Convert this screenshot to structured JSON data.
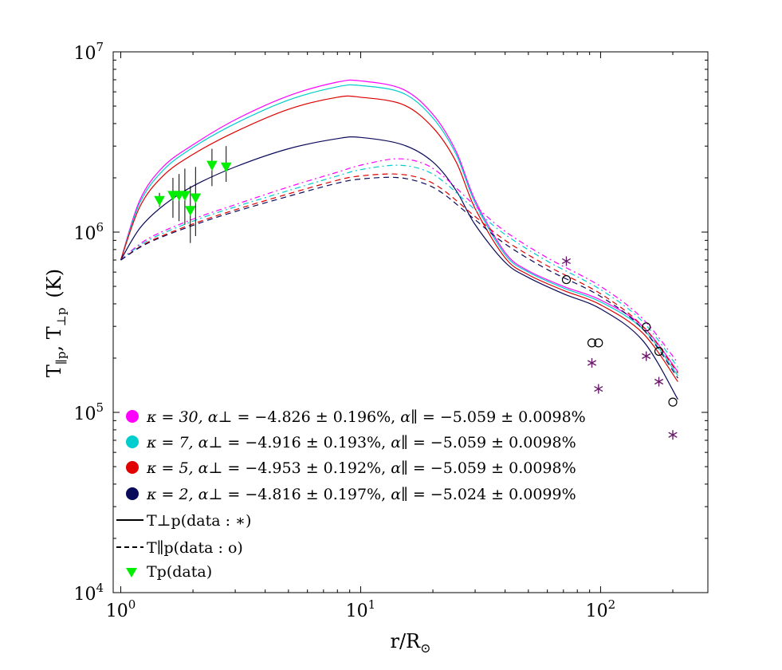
{
  "chart_data": {
    "type": "line",
    "x_scale": "log",
    "y_scale": "log",
    "xlabel": "r/R⊙",
    "ylabel": "T∥p, T⊥p  (K)",
    "xlim": [
      0.93,
      280
    ],
    "ylim": [
      10000,
      10000000
    ],
    "x_ticks": [
      {
        "value": 1,
        "base": "10",
        "exp": "0"
      },
      {
        "value": 10,
        "base": "10",
        "exp": "1"
      },
      {
        "value": 100,
        "base": "10",
        "exp": "2"
      }
    ],
    "y_ticks": [
      {
        "value": 10000,
        "base": "10",
        "exp": "4"
      },
      {
        "value": 100000,
        "base": "10",
        "exp": "5"
      },
      {
        "value": 1000000,
        "base": "10",
        "exp": "6"
      },
      {
        "value": 10000000,
        "base": "10",
        "exp": "7"
      }
    ],
    "series": [
      {
        "name": "kappa30-perp",
        "kappa": 30,
        "color": "#ff00ff",
        "style": "solid",
        "component": "perp",
        "x": [
          1,
          1.2,
          1.5,
          2,
          3,
          5,
          8,
          10,
          15,
          20,
          25,
          30,
          40,
          50,
          70,
          100,
          150,
          210
        ],
        "y": [
          700000,
          1500000,
          2300000,
          3050000,
          4200000,
          5700000,
          6800000,
          6900000,
          6200000,
          4500000,
          2800000,
          1500000,
          770000,
          610000,
          500000,
          420000,
          300000,
          168000
        ]
      },
      {
        "name": "kappa7-perp",
        "kappa": 7,
        "color": "#00cdcd",
        "style": "solid",
        "component": "perp",
        "x": [
          1,
          1.2,
          1.5,
          2,
          3,
          5,
          8,
          10,
          15,
          20,
          25,
          30,
          40,
          50,
          70,
          100,
          150,
          210
        ],
        "y": [
          700000,
          1450000,
          2200000,
          2950000,
          4000000,
          5400000,
          6400000,
          6500000,
          5900000,
          4300000,
          2700000,
          1450000,
          750000,
          600000,
          490000,
          410000,
          290000,
          160000
        ]
      },
      {
        "name": "kappa5-perp",
        "kappa": 5,
        "color": "#e00000",
        "style": "solid",
        "component": "perp",
        "x": [
          1,
          1.2,
          1.5,
          2,
          3,
          5,
          8,
          10,
          15,
          20,
          25,
          30,
          40,
          50,
          70,
          100,
          150,
          210
        ],
        "y": [
          700000,
          1380000,
          2050000,
          2700000,
          3600000,
          4800000,
          5600000,
          5600000,
          5100000,
          3800000,
          2450000,
          1350000,
          720000,
          580000,
          475000,
          395000,
          275000,
          148000
        ]
      },
      {
        "name": "kappa2-perp",
        "kappa": 2,
        "color": "#0a0a5a",
        "style": "solid",
        "component": "perp",
        "x": [
          1,
          1.2,
          1.5,
          2,
          3,
          5,
          8,
          10,
          15,
          20,
          25,
          30,
          40,
          50,
          70,
          100,
          150,
          210
        ],
        "y": [
          700000,
          1050000,
          1400000,
          1800000,
          2300000,
          2900000,
          3300000,
          3350000,
          3050000,
          2450000,
          1700000,
          1100000,
          680000,
          560000,
          455000,
          375000,
          250000,
          118000
        ]
      },
      {
        "name": "kappa30-par",
        "kappa": 30,
        "color": "#ff00ff",
        "style": "dashdot",
        "component": "par",
        "x": [
          1,
          1.3,
          2,
          3,
          5,
          8,
          10,
          14,
          18,
          22,
          30,
          40,
          60,
          100,
          150,
          210
        ],
        "y": [
          700000,
          920000,
          1180000,
          1420000,
          1780000,
          2150000,
          2350000,
          2550000,
          2420000,
          2050000,
          1400000,
          1010000,
          720000,
          500000,
          330000,
          188000
        ]
      },
      {
        "name": "kappa7-par",
        "kappa": 7,
        "color": "#00cdcd",
        "style": "dashdot",
        "component": "par",
        "x": [
          1,
          1.3,
          2,
          3,
          5,
          8,
          10,
          14,
          18,
          22,
          30,
          40,
          60,
          100,
          150,
          210
        ],
        "y": [
          700000,
          900000,
          1150000,
          1380000,
          1700000,
          2050000,
          2220000,
          2350000,
          2230000,
          1920000,
          1330000,
          970000,
          690000,
          480000,
          318000,
          178000
        ]
      },
      {
        "name": "kappa5-par",
        "kappa": 5,
        "color": "#e00000",
        "style": "dashed",
        "component": "par",
        "x": [
          1,
          1.3,
          2,
          3,
          5,
          8,
          10,
          14,
          18,
          22,
          30,
          40,
          60,
          100,
          150,
          210
        ],
        "y": [
          700000,
          880000,
          1110000,
          1330000,
          1630000,
          1940000,
          2050000,
          2100000,
          1980000,
          1720000,
          1220000,
          900000,
          650000,
          455000,
          300000,
          165000
        ]
      },
      {
        "name": "kappa2-par",
        "kappa": 2,
        "color": "#0a0a5a",
        "style": "dashed",
        "component": "par",
        "x": [
          1,
          1.3,
          2,
          3,
          5,
          8,
          10,
          14,
          18,
          22,
          30,
          40,
          60,
          100,
          150,
          210
        ],
        "y": [
          700000,
          870000,
          1090000,
          1300000,
          1580000,
          1870000,
          1970000,
          2010000,
          1880000,
          1640000,
          1170000,
          860000,
          620000,
          440000,
          290000,
          155000
        ]
      }
    ],
    "data_points": {
      "tp_triangles": [
        {
          "x": 1.45,
          "y": 1500000,
          "ylo": 1380000,
          "yhi": 1650000
        },
        {
          "x": 1.65,
          "y": 1600000,
          "ylo": 1200000,
          "yhi": 2000000
        },
        {
          "x": 1.75,
          "y": 1600000,
          "ylo": 1150000,
          "yhi": 2100000
        },
        {
          "x": 1.85,
          "y": 1600000,
          "ylo": 1100000,
          "yhi": 2250000
        },
        {
          "x": 1.95,
          "y": 1320000,
          "ylo": 870000,
          "yhi": 1800000
        },
        {
          "x": 2.05,
          "y": 1550000,
          "ylo": 950000,
          "yhi": 2300000
        },
        {
          "x": 2.4,
          "y": 2350000,
          "ylo": 1800000,
          "yhi": 2900000
        },
        {
          "x": 2.75,
          "y": 2300000,
          "ylo": 1900000,
          "yhi": 3000000
        }
      ],
      "perp_stars": [
        {
          "x": 72,
          "y": 690000
        },
        {
          "x": 92,
          "y": 188000
        },
        {
          "x": 98,
          "y": 135000
        },
        {
          "x": 155,
          "y": 205000
        },
        {
          "x": 175,
          "y": 148000
        },
        {
          "x": 200,
          "y": 75000
        }
      ],
      "par_circles": [
        {
          "x": 72,
          "y": 545000
        },
        {
          "x": 92,
          "y": 243000
        },
        {
          "x": 98,
          "y": 243000
        },
        {
          "x": 155,
          "y": 298000
        },
        {
          "x": 175,
          "y": 218000
        },
        {
          "x": 200,
          "y": 114000
        }
      ]
    },
    "legend": {
      "position": "lower-left",
      "kappa_entries": [
        {
          "kappa": "30",
          "alpha_perp": "−4.826 ± 0.196%",
          "alpha_par": "−5.059 ± 0.0098%",
          "color": "#ff00ff"
        },
        {
          "kappa": "7",
          "alpha_perp": "−4.916 ± 0.193%",
          "alpha_par": "−5.059 ± 0.0098%",
          "color": "#00cdcd"
        },
        {
          "kappa": "5",
          "alpha_perp": "−4.953 ± 0.192%",
          "alpha_par": "−5.059 ± 0.0098%",
          "color": "#e00000"
        },
        {
          "kappa": "2",
          "alpha_perp": "−4.816 ± 0.197%",
          "alpha_par": "−5.024 ± 0.0099%",
          "color": "#0a0a5a"
        }
      ],
      "kappa_symbol": "κ = ",
      "alpha_perp_symbol": "α⊥ = ",
      "alpha_par_symbol": "α∥ = ",
      "perp_line_label": "T⊥p(data : ∗)",
      "par_line_label": "T∥p(data : o)",
      "tp_label": "Tp(data)"
    },
    "colors": {
      "tp_marker": "#00ee00",
      "stars": "#6a1a6a",
      "circles": "#000000"
    }
  }
}
